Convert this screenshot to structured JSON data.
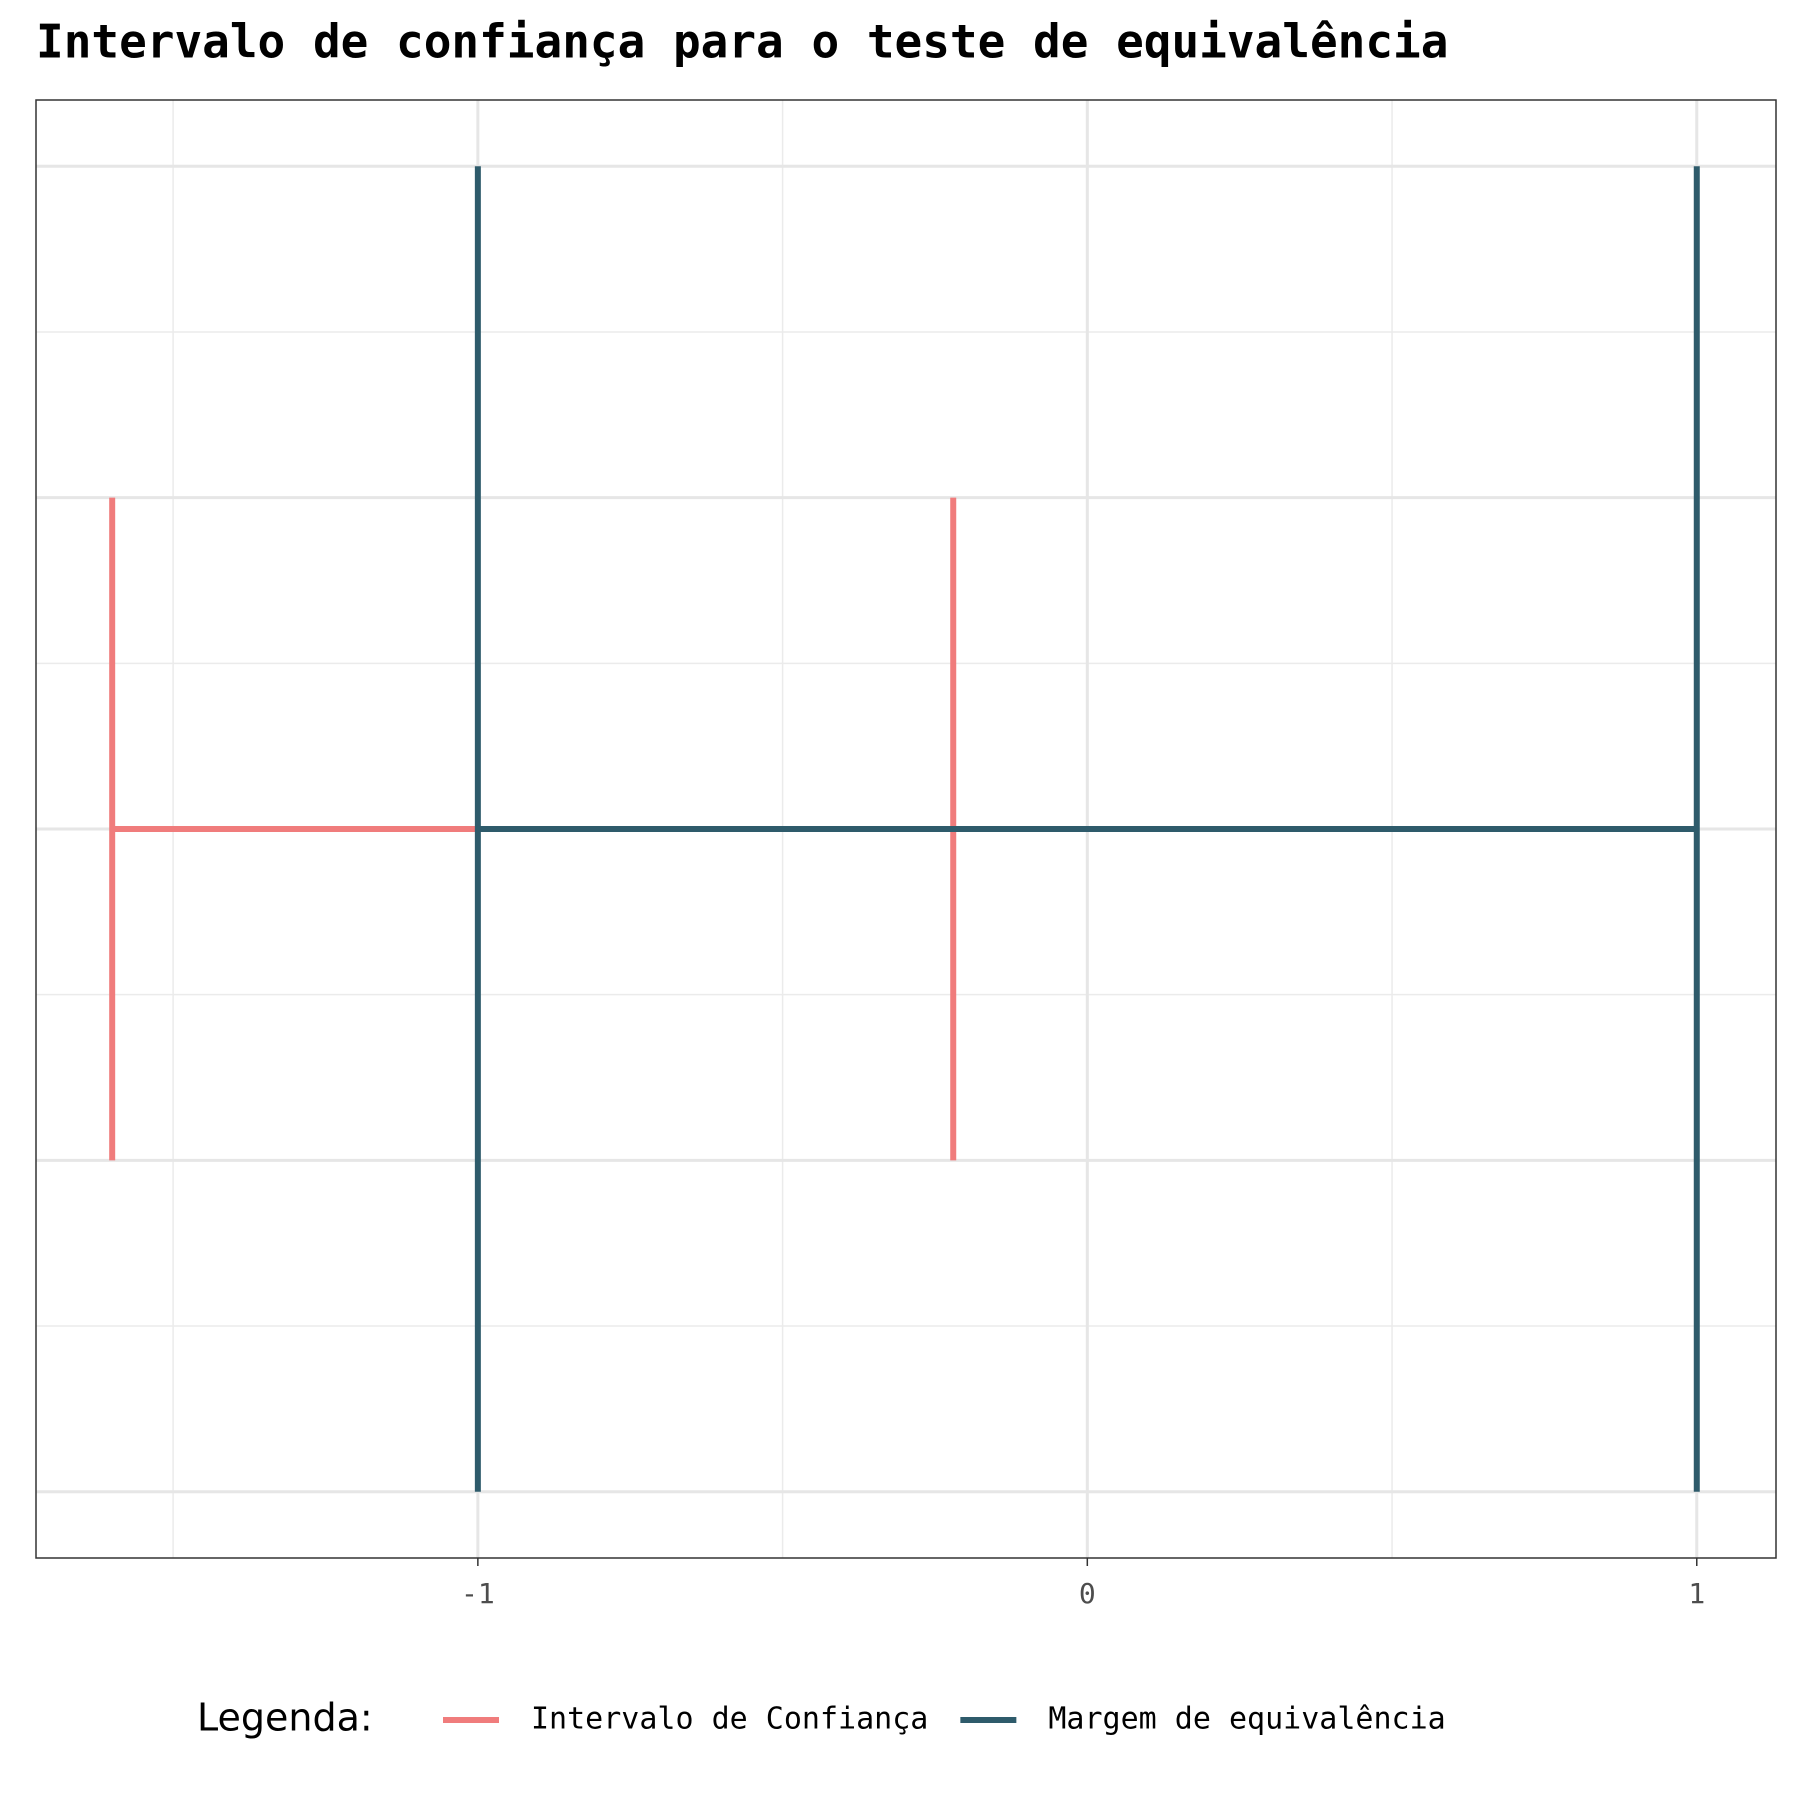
{
  "chart_data": {
    "type": "interval",
    "title": "Intervalo de confiança para o teste de equivalência",
    "series": [
      {
        "name": "Intervalo de Confiança",
        "color": "#f07c7c",
        "values": [
          -1.6,
          -0.22
        ],
        "y": 0,
        "cap": [
          -0.5,
          0.5
        ]
      },
      {
        "name": "Margem de equivalência",
        "color": "#2e5b6b",
        "values": [
          -1,
          1
        ],
        "y": 0,
        "cap": [
          -1,
          1
        ]
      }
    ],
    "xlim": [
      -1.725,
      1.13
    ],
    "xticks": [
      -1,
      0,
      1
    ],
    "xminor": [
      -1.5,
      -0.5,
      0.5
    ],
    "ylim": [
      -1.1,
      1.1
    ],
    "yticks": [
      -1,
      -0.5,
      0,
      0.5,
      1
    ],
    "yminor": [
      -0.75,
      -0.25,
      0.25,
      0.75
    ],
    "grid": true,
    "legend_title": "Legenda:",
    "legend_position": "bottom"
  }
}
